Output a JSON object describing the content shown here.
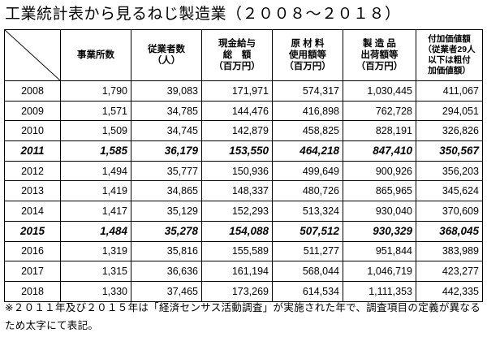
{
  "title": "工業統計表から見るねじ製造業（２００８～２０１８）",
  "table": {
    "headers": [
      {
        "key": "establishments",
        "lines": [
          "事業所数"
        ]
      },
      {
        "key": "employees",
        "lines": [
          "従業者数",
          "（人）"
        ]
      },
      {
        "key": "wages",
        "lines": [
          "現金給与",
          "総　額",
          "（百万円）"
        ]
      },
      {
        "key": "materials",
        "lines": [
          "原 材 料",
          "使用額等",
          "（百万円）"
        ]
      },
      {
        "key": "shipments",
        "lines": [
          "製 造 品",
          "出荷額等",
          "（百万円）"
        ]
      },
      {
        "key": "value_added",
        "lines": [
          "付加価値額",
          "（従業者29人",
          "以下は粗付",
          "加価値額）"
        ]
      }
    ],
    "rows": [
      {
        "year": "2008",
        "establishments": "1,790",
        "employees": "39,083",
        "wages": "171,971",
        "materials": "574,317",
        "shipments": "1,030,445",
        "value_added": "411,067",
        "bold": false
      },
      {
        "year": "2009",
        "establishments": "1,571",
        "employees": "34,785",
        "wages": "144,476",
        "materials": "416,898",
        "shipments": "762,728",
        "value_added": "294,051",
        "bold": false
      },
      {
        "year": "2010",
        "establishments": "1,509",
        "employees": "34,745",
        "wages": "142,879",
        "materials": "458,825",
        "shipments": "828,191",
        "value_added": "326,826",
        "bold": false
      },
      {
        "year": "2011",
        "establishments": "1,585",
        "employees": "36,179",
        "wages": "153,550",
        "materials": "464,218",
        "shipments": "847,410",
        "value_added": "350,567",
        "bold": true
      },
      {
        "year": "2012",
        "establishments": "1,494",
        "employees": "35,777",
        "wages": "150,936",
        "materials": "499,649",
        "shipments": "900,926",
        "value_added": "356,203",
        "bold": false
      },
      {
        "year": "2013",
        "establishments": "1,419",
        "employees": "34,865",
        "wages": "148,337",
        "materials": "480,726",
        "shipments": "865,965",
        "value_added": "345,624",
        "bold": false
      },
      {
        "year": "2014",
        "establishments": "1,417",
        "employees": "35,129",
        "wages": "152,293",
        "materials": "513,324",
        "shipments": "930,040",
        "value_added": "370,609",
        "bold": false
      },
      {
        "year": "2015",
        "establishments": "1,484",
        "employees": "35,278",
        "wages": "154,088",
        "materials": "507,512",
        "shipments": "930,329",
        "value_added": "368,045",
        "bold": true
      },
      {
        "year": "2016",
        "establishments": "1,319",
        "employees": "35,816",
        "wages": "155,589",
        "materials": "511,277",
        "shipments": "951,844",
        "value_added": "383,989",
        "bold": false
      },
      {
        "year": "2017",
        "establishments": "1,315",
        "employees": "36,636",
        "wages": "161,194",
        "materials": "568,044",
        "shipments": "1,046,719",
        "value_added": "423,277",
        "bold": false
      },
      {
        "year": "2018",
        "establishments": "1,330",
        "employees": "37,465",
        "wages": "173,269",
        "materials": "614,534",
        "shipments": "1,111,353",
        "value_added": "442,335",
        "bold": false
      }
    ]
  },
  "footnote": "※２０１１年及び２０１５年は「経済センサス活動調査」が実施された年で、調査項目の定義が異なるため太字にて表記。"
}
